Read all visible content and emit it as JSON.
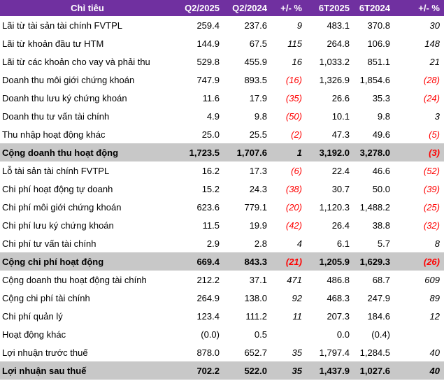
{
  "header": [
    "Chỉ tiêu",
    "Q2/2025",
    "Q2/2024",
    "+/- %",
    "6T2025",
    "6T2024",
    "+/- %"
  ],
  "rows": [
    {
      "label": "Lãi từ tài sản tài chính FVTPL",
      "q2_2025": "259.4",
      "q2_2024": "237.6",
      "chg_q": "9",
      "h1_2025": "483.1",
      "h1_2024": "370.8",
      "chg_h": "30",
      "total": false
    },
    {
      "label": "Lãi từ khoản đầu tư HTM",
      "q2_2025": "144.9",
      "q2_2024": "67.5",
      "chg_q": "115",
      "h1_2025": "264.8",
      "h1_2024": "106.9",
      "chg_h": "148",
      "total": false
    },
    {
      "label": "Lãi từ các khoản cho vay và phải thu",
      "q2_2025": "529.8",
      "q2_2024": "455.9",
      "chg_q": "16",
      "h1_2025": "1,033.2",
      "h1_2024": "851.1",
      "chg_h": "21",
      "total": false
    },
    {
      "label": "Doanh thu môi giới chứng khoán",
      "q2_2025": "747.9",
      "q2_2024": "893.5",
      "chg_q": "(16)",
      "h1_2025": "1,326.9",
      "h1_2024": "1,854.6",
      "chg_h": "(28)",
      "total": false
    },
    {
      "label": "Doanh thu lưu ký chứng khoán",
      "q2_2025": "11.6",
      "q2_2024": "17.9",
      "chg_q": "(35)",
      "h1_2025": "26.6",
      "h1_2024": "35.3",
      "chg_h": "(24)",
      "total": false
    },
    {
      "label": "Doanh thu tư vấn tài chính",
      "q2_2025": "4.9",
      "q2_2024": "9.8",
      "chg_q": "(50)",
      "h1_2025": "10.1",
      "h1_2024": "9.8",
      "chg_h": "3",
      "total": false
    },
    {
      "label": "Thu nhập hoạt động khác",
      "q2_2025": "25.0",
      "q2_2024": "25.5",
      "chg_q": "(2)",
      "h1_2025": "47.3",
      "h1_2024": "49.6",
      "chg_h": "(5)",
      "total": false
    },
    {
      "label": "Cộng doanh thu hoạt động",
      "q2_2025": "1,723.5",
      "q2_2024": "1,707.6",
      "chg_q": "1",
      "h1_2025": "3,192.0",
      "h1_2024": "3,278.0",
      "chg_h": "(3)",
      "total": true
    },
    {
      "label": "Lỗ tài sản tài chính FVTPL",
      "q2_2025": "16.2",
      "q2_2024": "17.3",
      "chg_q": "(6)",
      "h1_2025": "22.4",
      "h1_2024": "46.6",
      "chg_h": "(52)",
      "total": false
    },
    {
      "label": "Chi phí hoạt động tự doanh",
      "q2_2025": "15.2",
      "q2_2024": "24.3",
      "chg_q": "(38)",
      "h1_2025": "30.7",
      "h1_2024": "50.0",
      "chg_h": "(39)",
      "total": false
    },
    {
      "label": "Chi phí môi giới chứng khoán",
      "q2_2025": "623.6",
      "q2_2024": "779.1",
      "chg_q": "(20)",
      "h1_2025": "1,120.3",
      "h1_2024": "1,488.2",
      "chg_h": "(25)",
      "total": false
    },
    {
      "label": "Chi phí lưu ký chứng khoán",
      "q2_2025": "11.5",
      "q2_2024": "19.9",
      "chg_q": "(42)",
      "h1_2025": "26.4",
      "h1_2024": "38.8",
      "chg_h": "(32)",
      "total": false
    },
    {
      "label": "Chi phí tư vấn tài chính",
      "q2_2025": "2.9",
      "q2_2024": "2.8",
      "chg_q": "4",
      "h1_2025": "6.1",
      "h1_2024": "5.7",
      "chg_h": "8",
      "total": false
    },
    {
      "label": "Cộng chi phí hoạt động",
      "q2_2025": "669.4",
      "q2_2024": "843.3",
      "chg_q": "(21)",
      "h1_2025": "1,205.9",
      "h1_2024": "1,629.3",
      "chg_h": "(26)",
      "total": true
    },
    {
      "label": "Cộng doanh thu hoạt động tài chính",
      "q2_2025": "212.2",
      "q2_2024": "37.1",
      "chg_q": "471",
      "h1_2025": "486.8",
      "h1_2024": "68.7",
      "chg_h": "609",
      "total": false
    },
    {
      "label": "Cộng chi phí tài chính",
      "q2_2025": "264.9",
      "q2_2024": "138.0",
      "chg_q": "92",
      "h1_2025": "468.3",
      "h1_2024": "247.9",
      "chg_h": "89",
      "total": false
    },
    {
      "label": "Chi phí quản lý",
      "q2_2025": "123.4",
      "q2_2024": "111.2",
      "chg_q": "11",
      "h1_2025": "207.3",
      "h1_2024": "184.6",
      "chg_h": "12",
      "total": false
    },
    {
      "label": "Hoạt động khác",
      "q2_2025": "(0.0)",
      "q2_2024": "0.5",
      "chg_q": "",
      "h1_2025": "0.0",
      "h1_2024": "(0.4)",
      "chg_h": "",
      "total": false
    },
    {
      "label": "Lợi nhuận trước thuế",
      "q2_2025": "878.0",
      "q2_2024": "652.7",
      "chg_q": "35",
      "h1_2025": "1,797.4",
      "h1_2024": "1,284.5",
      "chg_h": "40",
      "total": false
    },
    {
      "label": "Lợi nhuận sau thuế",
      "q2_2025": "702.2",
      "q2_2024": "522.0",
      "chg_q": "35",
      "h1_2025": "1,437.9",
      "h1_2024": "1,027.6",
      "chg_h": "40",
      "total": true
    }
  ]
}
